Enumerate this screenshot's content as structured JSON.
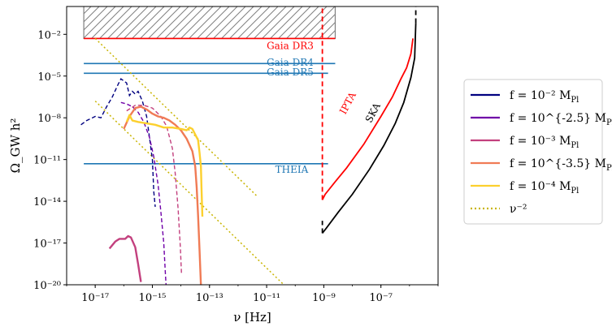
{
  "chart_data": {
    "type": "line",
    "xscale": "log10",
    "yscale": "log10",
    "xlabel": "ν [Hz]",
    "ylabel": "Ω_GW h²",
    "xlim": [
      1e-18,
      1e-05
    ],
    "ylim": [
      1e-20,
      1.0
    ],
    "xticks": [
      {
        "value": -17,
        "label": "10⁻¹⁷"
      },
      {
        "value": -15,
        "label": "10⁻¹⁵"
      },
      {
        "value": -13,
        "label": "10⁻¹³"
      },
      {
        "value": -11,
        "label": "10⁻¹¹"
      },
      {
        "value": -9,
        "label": "10⁻⁹"
      },
      {
        "value": -7,
        "label": "10⁻⁷"
      }
    ],
    "yticks": [
      {
        "value": -2,
        "label": "10⁻²"
      },
      {
        "value": -5,
        "label": "10⁻⁵"
      },
      {
        "value": -8,
        "label": "10⁻⁸"
      },
      {
        "value": -11,
        "label": "10⁻¹¹"
      },
      {
        "value": -14,
        "label": "10⁻¹⁴"
      },
      {
        "value": -17,
        "label": "10⁻¹⁷"
      },
      {
        "value": -20,
        "label": "10⁻²⁰"
      }
    ],
    "excluded_region": {
      "x": [
        -17.4,
        -8.6
      ],
      "y": [
        -2.3,
        -0.2
      ],
      "color": "#808080"
    },
    "sensitivity_curves": [
      {
        "name": "Gaia DR3",
        "color": "#ff0000",
        "x": [
          -17.4,
          -8.6
        ],
        "log_omega": -2.3
      },
      {
        "name": "Gaia DR4",
        "color": "#1f77b4",
        "x": [
          -17.4,
          -8.6
        ],
        "log_omega": -4.1
      },
      {
        "name": "Gaia DR5",
        "color": "#1f77b4",
        "x": [
          -17.4,
          -8.85
        ],
        "log_omega": -4.8
      },
      {
        "name": "THEIA",
        "color": "#1f77b4",
        "x": [
          -17.4,
          -8.85
        ],
        "log_omega": -11.3
      }
    ],
    "pta_curves": [
      {
        "name": "IPTA",
        "color": "#ff0000",
        "points": [
          [
            -9.05,
            -13.9
          ],
          [
            -8.95,
            -13.5
          ],
          [
            -8.6,
            -12.6
          ],
          [
            -8.2,
            -11.6
          ],
          [
            -7.6,
            -9.9
          ],
          [
            -7.0,
            -7.9
          ],
          [
            -6.6,
            -6.5
          ],
          [
            -6.3,
            -5.2
          ],
          [
            -6.1,
            -4.4
          ],
          [
            -5.95,
            -3.4
          ],
          [
            -5.88,
            -2.3
          ]
        ],
        "vertical_dashed": {
          "x": -9.05,
          "y": [
            -13.9,
            0
          ]
        }
      },
      {
        "name": "SKA",
        "color": "#000000",
        "points": [
          [
            -9.05,
            -16.3
          ],
          [
            -8.9,
            -15.9
          ],
          [
            -8.5,
            -14.8
          ],
          [
            -8.0,
            -13.5
          ],
          [
            -7.4,
            -11.7
          ],
          [
            -6.9,
            -10.0
          ],
          [
            -6.5,
            -8.4
          ],
          [
            -6.2,
            -6.9
          ],
          [
            -5.95,
            -5.1
          ],
          [
            -5.82,
            -3.7
          ],
          [
            -5.78,
            -1.2
          ]
        ],
        "vertical_dashed": {
          "x": -5.78,
          "y": [
            -1.2,
            0
          ]
        },
        "lower_dashed": {
          "x": -9.05,
          "y": [
            -16.3,
            -15.4
          ]
        }
      }
    ],
    "series": [
      {
        "name": "f = 10⁻² M_Pl",
        "color": "#000080",
        "dashed": [
          [
            -17.5,
            -8.5
          ],
          [
            -17.3,
            -8.2
          ],
          [
            -17.0,
            -7.9
          ],
          [
            -16.8,
            -8.0
          ],
          [
            -16.7,
            -7.6
          ],
          [
            -16.6,
            -7.2
          ],
          [
            -16.4,
            -6.5
          ],
          [
            -16.2,
            -5.6
          ],
          [
            -16.1,
            -5.2
          ],
          [
            -15.9,
            -5.5
          ],
          [
            -15.8,
            -6.4
          ],
          [
            -15.7,
            -6.1
          ],
          [
            -15.6,
            -6.3
          ],
          [
            -15.5,
            -6.1
          ],
          [
            -15.35,
            -6.8
          ],
          [
            -15.2,
            -7.9
          ],
          [
            -15.1,
            -9.4
          ],
          [
            -15.0,
            -11.0
          ],
          [
            -14.95,
            -13.3
          ],
          [
            -14.9,
            -14.4
          ]
        ],
        "solid": []
      },
      {
        "name": "f = 10^{-2.5} M_Pl",
        "color": "#7000a8",
        "dashed": [
          [
            -16.1,
            -6.9
          ],
          [
            -15.9,
            -7.0
          ],
          [
            -15.7,
            -7.2
          ],
          [
            -15.5,
            -7.6
          ],
          [
            -15.3,
            -8.3
          ],
          [
            -15.1,
            -9.4
          ],
          [
            -14.95,
            -10.8
          ],
          [
            -14.8,
            -12.8
          ],
          [
            -14.7,
            -14.8
          ],
          [
            -14.6,
            -17.0
          ],
          [
            -14.55,
            -19.0
          ],
          [
            -14.52,
            -20.0
          ]
        ],
        "solid": []
      },
      {
        "name": "f = 10⁻³ M_Pl",
        "color": "#c3407e",
        "dashed": [
          [
            -15.9,
            -7.5
          ],
          [
            -15.6,
            -7.1
          ],
          [
            -15.3,
            -7.1
          ],
          [
            -15.0,
            -7.3
          ],
          [
            -14.7,
            -7.9
          ],
          [
            -14.5,
            -8.6
          ],
          [
            -14.3,
            -10.2
          ],
          [
            -14.2,
            -12.0
          ],
          [
            -14.1,
            -14.5
          ],
          [
            -14.02,
            -17.3
          ],
          [
            -13.98,
            -19.2
          ]
        ],
        "solid": [
          [
            -16.5,
            -17.4
          ],
          [
            -16.3,
            -16.9
          ],
          [
            -16.15,
            -16.7
          ],
          [
            -15.95,
            -16.7
          ],
          [
            -15.85,
            -16.5
          ],
          [
            -15.75,
            -16.6
          ],
          [
            -15.6,
            -17.3
          ],
          [
            -15.5,
            -18.5
          ],
          [
            -15.4,
            -19.8
          ]
        ]
      },
      {
        "name": "f = 10^{-3.5} M_Pl",
        "color": "#f07b55",
        "dashed": [],
        "solid": [
          [
            -16.0,
            -8.8
          ],
          [
            -15.8,
            -7.9
          ],
          [
            -15.6,
            -7.3
          ],
          [
            -15.4,
            -7.2
          ],
          [
            -15.2,
            -7.4
          ],
          [
            -15.0,
            -7.7
          ],
          [
            -14.8,
            -7.9
          ],
          [
            -14.6,
            -8.0
          ],
          [
            -14.4,
            -8.2
          ],
          [
            -14.2,
            -8.5
          ],
          [
            -14.0,
            -8.9
          ],
          [
            -13.8,
            -9.5
          ],
          [
            -13.6,
            -10.4
          ],
          [
            -13.5,
            -11.5
          ],
          [
            -13.45,
            -13.0
          ],
          [
            -13.4,
            -15.0
          ],
          [
            -13.35,
            -17.5
          ],
          [
            -13.3,
            -20.0
          ]
        ]
      },
      {
        "name": "f = 10⁻⁴ M_Pl",
        "color": "#fcd02e",
        "dashed": [],
        "solid": [
          [
            -15.9,
            -8.3
          ],
          [
            -15.8,
            -7.8
          ],
          [
            -15.7,
            -8.2
          ],
          [
            -15.5,
            -8.3
          ],
          [
            -15.2,
            -8.4
          ],
          [
            -14.9,
            -8.5
          ],
          [
            -14.6,
            -8.7
          ],
          [
            -14.3,
            -8.7
          ],
          [
            -14.0,
            -8.8
          ],
          [
            -13.8,
            -8.9
          ],
          [
            -13.7,
            -8.7
          ],
          [
            -13.6,
            -8.8
          ],
          [
            -13.5,
            -9.2
          ],
          [
            -13.4,
            -9.6
          ],
          [
            -13.35,
            -10.5
          ],
          [
            -13.3,
            -11.5
          ],
          [
            -13.28,
            -13.0
          ],
          [
            -13.25,
            -15.1
          ]
        ]
      },
      {
        "name": "ν⁻²",
        "color": "#c8b400",
        "style": "dotted",
        "lines": [
          [
            [
              -17.0,
              -2.3
            ],
            [
              -11.3,
              -13.7
            ]
          ],
          [
            [
              -17.0,
              -6.8
            ],
            [
              -10.4,
              -20.0
            ]
          ]
        ]
      }
    ],
    "annotations": [
      {
        "text": "Gaia DR3",
        "color": "#ff0000",
        "x": -11.0,
        "y": -3.05
      },
      {
        "text": "Gaia DR4",
        "color": "#1f77b4",
        "x": -11.0,
        "y": -4.25
      },
      {
        "text": "Gaia DR5",
        "color": "#1f77b4",
        "x": -11.0,
        "y": -4.95
      },
      {
        "text": "THEIA",
        "color": "#1f77b4",
        "x": -10.7,
        "y": -11.95
      },
      {
        "text": "IPTA",
        "color": "#ff0000",
        "x": -8.25,
        "y": -7.8,
        "rotate": -62
      },
      {
        "text": "SKA",
        "color": "#000000",
        "x": -7.35,
        "y": -8.4,
        "rotate": -62
      }
    ],
    "legend_position": "right",
    "legend": [
      {
        "label": "f = 10⁻² M",
        "sub": "Pl",
        "color": "#000080",
        "style": "solid"
      },
      {
        "label": "f = 10^{-2.5} M",
        "sub": "Pl",
        "color": "#7000a8",
        "style": "solid"
      },
      {
        "label": "f = 10⁻³ M",
        "sub": "Pl",
        "color": "#c3407e",
        "style": "solid"
      },
      {
        "label": "f = 10^{-3.5} M",
        "sub": "Pl",
        "color": "#f07b55",
        "style": "solid"
      },
      {
        "label": "f = 10⁻⁴ M",
        "sub": "Pl",
        "color": "#fcd02e",
        "style": "solid"
      },
      {
        "label": "ν⁻²",
        "sub": "",
        "color": "#c8b400",
        "style": "dotted"
      }
    ]
  }
}
